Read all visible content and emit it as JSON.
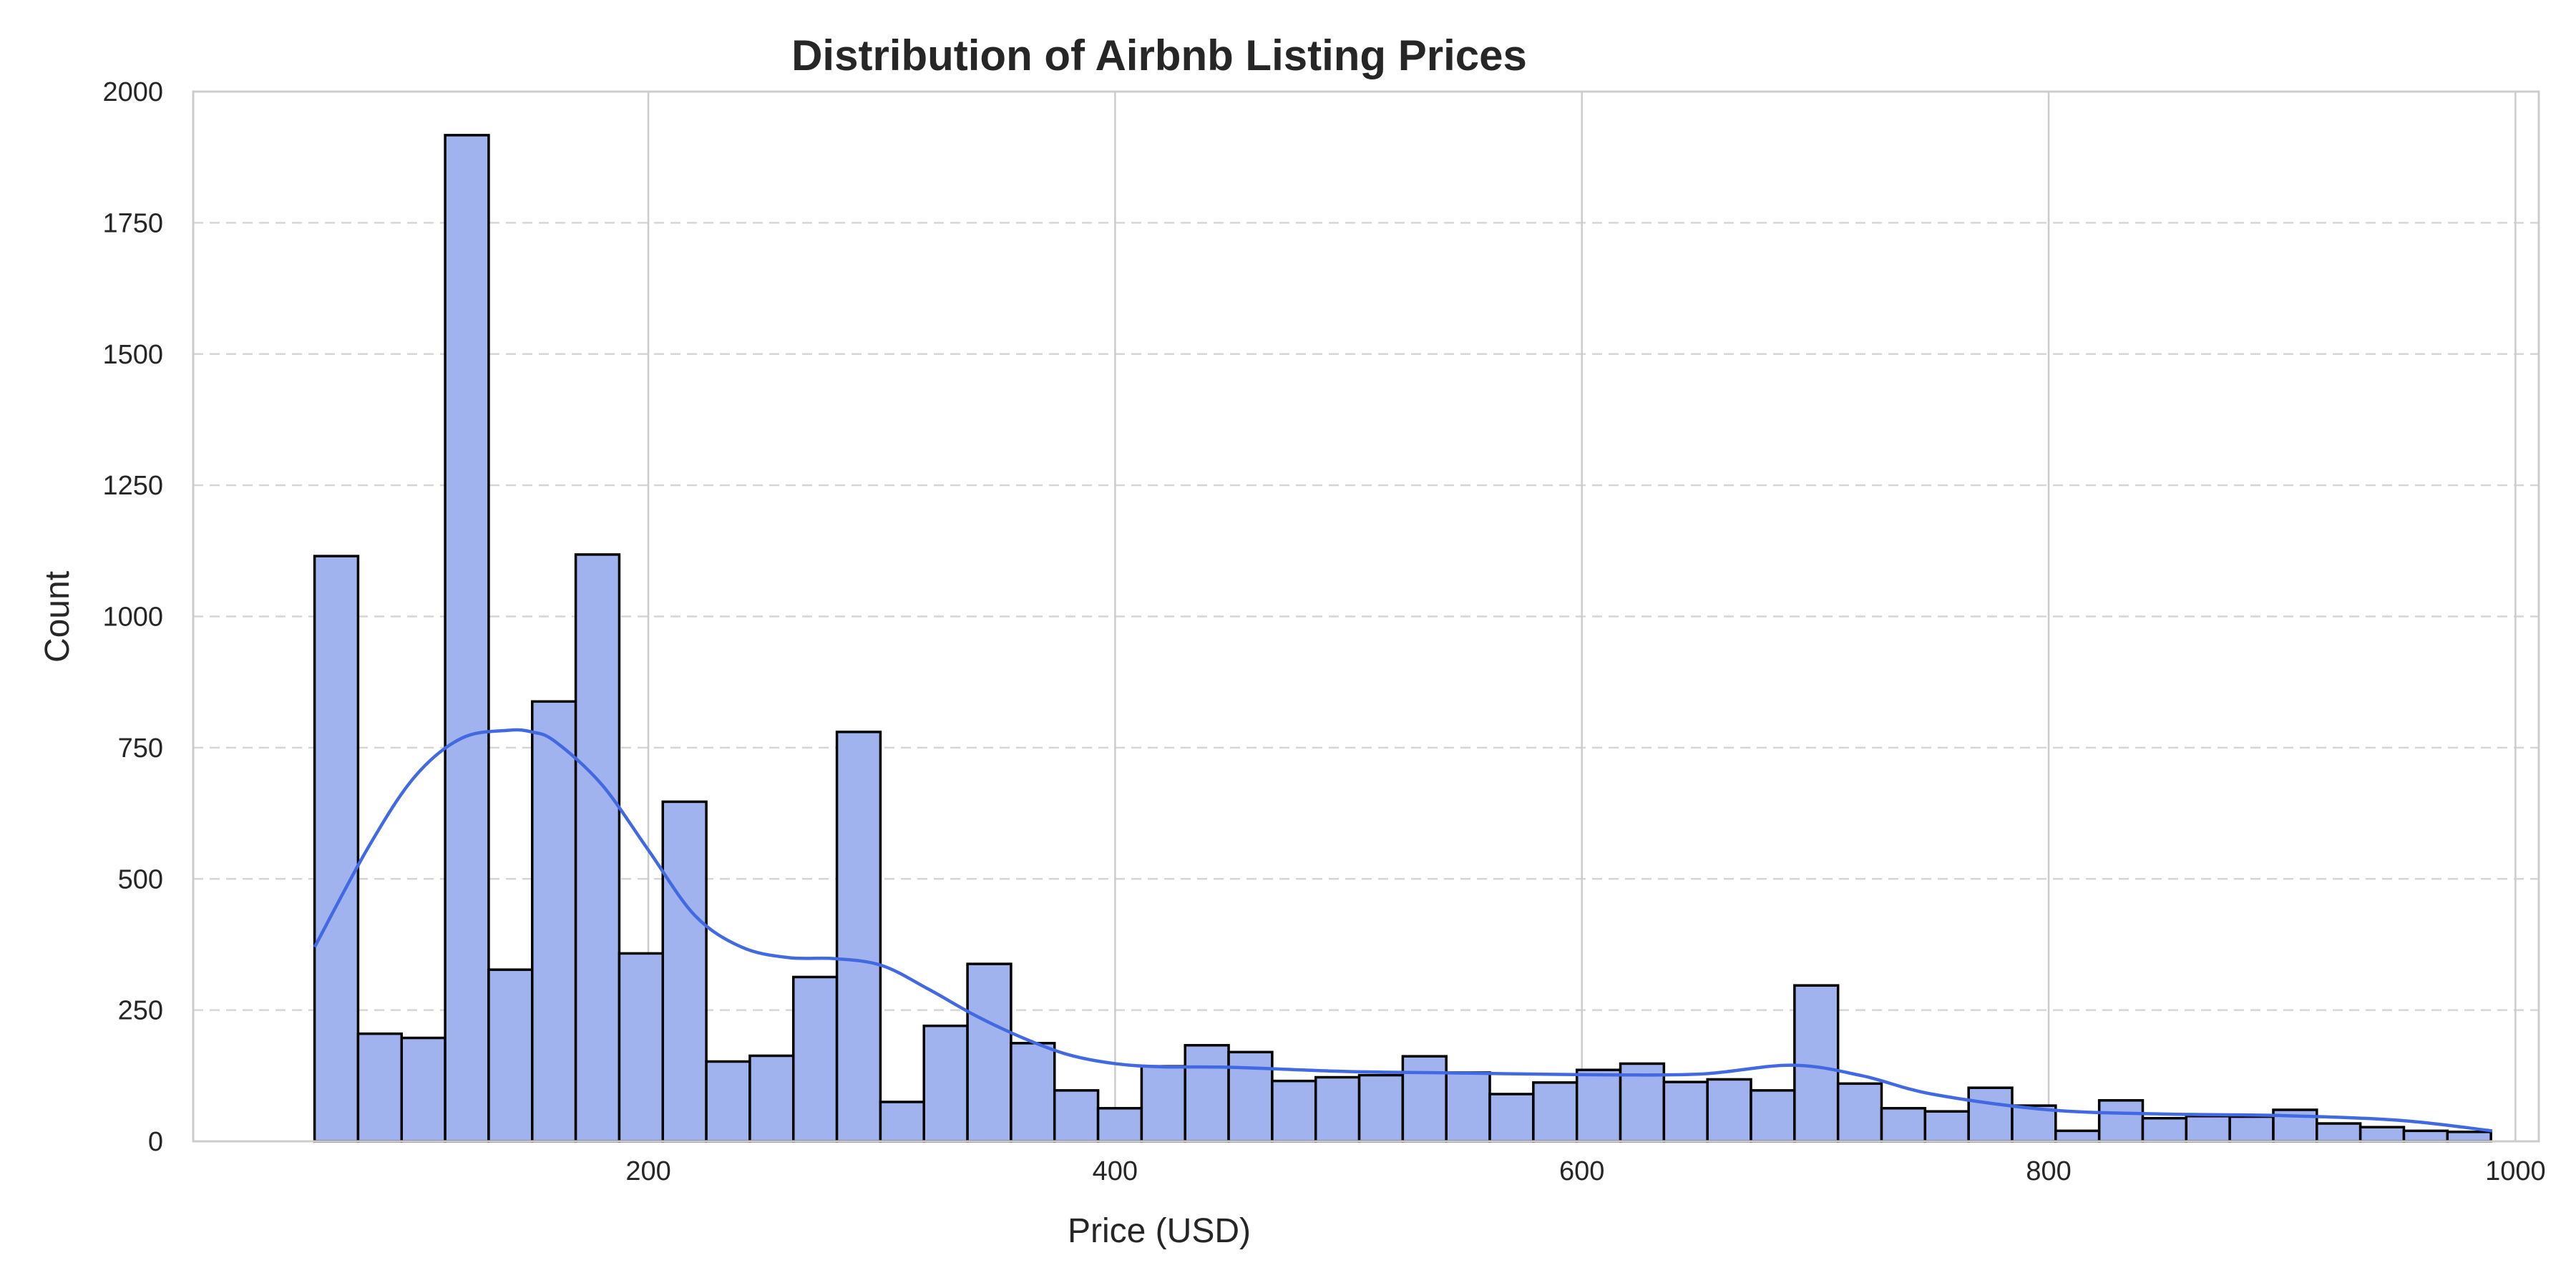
{
  "chart_data": {
    "type": "bar",
    "subtype": "histogram-with-kde",
    "title": "Distribution of Airbnb Listing Prices",
    "xlabel": "Price (USD)",
    "ylabel": "Count",
    "xlim": [
      5,
      1010
    ],
    "ylim": [
      0,
      2000
    ],
    "xticks": [
      200,
      400,
      600,
      800,
      1000
    ],
    "yticks": [
      0,
      250,
      500,
      750,
      1000,
      1250,
      1500,
      1750,
      2000
    ],
    "bin_start": 57,
    "bin_width": 18.65,
    "values": [
      1115,
      205,
      197,
      1917,
      327,
      838,
      1118,
      358,
      647,
      152,
      163,
      313,
      780,
      75,
      220,
      338,
      187,
      97,
      63,
      143,
      183,
      170,
      115,
      122,
      126,
      162,
      131,
      90,
      112,
      136,
      148,
      113,
      118,
      97,
      297,
      110,
      63,
      57,
      102,
      68,
      20,
      78,
      44,
      48,
      47,
      60,
      34,
      27,
      20,
      18
    ],
    "kde": {
      "x": [
        57,
        80,
        100,
        120,
        140,
        150,
        160,
        180,
        200,
        220,
        240,
        260,
        280,
        300,
        320,
        340,
        360,
        380,
        400,
        420,
        450,
        500,
        550,
        600,
        650,
        690,
        720,
        750,
        800,
        850,
        900,
        950,
        990
      ],
      "y": [
        370,
        560,
        695,
        768,
        783,
        780,
        762,
        680,
        555,
        430,
        370,
        350,
        348,
        335,
        290,
        240,
        198,
        165,
        148,
        142,
        141,
        133,
        130,
        127,
        128,
        145,
        125,
        90,
        60,
        52,
        49,
        40,
        20
      ]
    },
    "grid": true,
    "colors": {
      "bar_fill": "#a0b3ef",
      "bar_edge": "#000000",
      "kde_line": "#4169e1"
    }
  }
}
